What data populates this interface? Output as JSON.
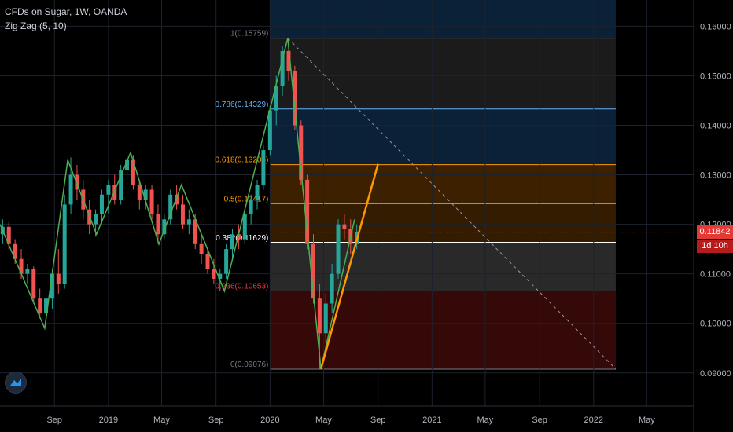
{
  "legend": {
    "symbol_line": "CFDs on Sugar, 1W, OANDA",
    "indicator_line": "Zig Zag (5, 10)"
  },
  "colors": {
    "background": "#000000",
    "axis_text": "#b2b5be",
    "up_candle": "#26a69a",
    "down_candle": "#ef5350",
    "zigzag": "#4caf50",
    "trendline": "#ff9800",
    "current_price_line": "#ef5350",
    "current_price_badge": "#e53935",
    "countdown_badge": "#b71c1c"
  },
  "current_price": {
    "label": "0.11842",
    "countdown": "1d 10h",
    "value": 0.11842
  },
  "chart_data": {
    "type": "candlestick",
    "title": "CFDs on Sugar, 1W, OANDA",
    "ylim": [
      0.0833,
      0.1653
    ],
    "y_ticks": [
      0.09,
      0.1,
      0.11,
      0.12,
      0.13,
      0.14,
      0.15,
      0.16
    ],
    "y_tick_labels": [
      "0.09000",
      "0.10000",
      "0.11000",
      "0.12000",
      "0.13000",
      "0.14000",
      "0.15000",
      "0.16000"
    ],
    "x_tick_labels": [
      "Sep",
      "2019",
      "May",
      "Sep",
      "2020",
      "May",
      "Sep",
      "2021",
      "May",
      "Sep",
      "2022",
      "May"
    ],
    "x_tick_dates": [
      "2018-09-01",
      "2019-01-01",
      "2019-05-01",
      "2019-09-01",
      "2020-01-01",
      "2020-05-01",
      "2020-09-01",
      "2021-01-01",
      "2021-05-01",
      "2021-09-01",
      "2022-01-01",
      "2022-05-01"
    ],
    "zigzag": [
      [
        "2018-05-01",
        0.12
      ],
      [
        "2018-08-10",
        0.099
      ],
      [
        "2018-10-01",
        0.133
      ],
      [
        "2018-12-05",
        0.118
      ],
      [
        "2019-02-20",
        0.1345
      ],
      [
        "2019-04-25",
        0.116
      ],
      [
        "2019-06-15",
        0.128
      ],
      [
        "2019-09-20",
        0.1065
      ],
      [
        "2020-02-10",
        0.1576
      ],
      [
        "2020-04-25",
        0.0908
      ],
      [
        "2020-07-10",
        0.121
      ]
    ],
    "fibonacci": {
      "start": "2020-01-01",
      "end": "2022-02-20",
      "levels": [
        {
          "ratio": 0,
          "price": 0.09076,
          "label": "0(0.09076)",
          "color": "#787b86",
          "fill": "rgba(120,20,20,0.45)"
        },
        {
          "ratio": 0.236,
          "price": 0.10653,
          "label": "0.236(0.10653)",
          "color": "#f23645",
          "fill": "rgba(90,90,90,0.45)"
        },
        {
          "ratio": 0.382,
          "price": 0.11629,
          "label": "0.382(0.11629)",
          "color": "#ffffff",
          "fill": "rgba(150,80,0,0.35)"
        },
        {
          "ratio": 0.5,
          "price": 0.12417,
          "label": "0.5(0.12417)",
          "color": "#ff9800",
          "fill": "rgba(150,80,0,0.40)"
        },
        {
          "ratio": 0.618,
          "price": 0.13206,
          "label": "0.618(0.13206)",
          "color": "#ff9800",
          "fill": "rgba(20,60,100,0.55)"
        },
        {
          "ratio": 0.786,
          "price": 0.14329,
          "label": "0.786(0.14329)",
          "color": "#64b5f6",
          "fill": "rgba(60,60,60,0.45)"
        },
        {
          "ratio": 1,
          "price": 0.15759,
          "label": "1(0.15759)",
          "color": "#787b86",
          "fill": "rgba(20,60,100,0.55)"
        }
      ]
    },
    "diagonal": {
      "from": [
        "2020-02-10",
        0.1576
      ],
      "to": [
        "2022-02-20",
        0.0908
      ]
    },
    "trendline": {
      "from": [
        "2020-04-25",
        0.0908
      ],
      "to": [
        "2020-09-01",
        0.1322
      ]
    },
    "candles": [
      [
        "2018-05-07",
        0.118,
        0.121,
        0.116,
        0.1195
      ],
      [
        "2018-05-21",
        0.1195,
        0.1205,
        0.115,
        0.116
      ],
      [
        "2018-06-04",
        0.116,
        0.117,
        0.112,
        0.113
      ],
      [
        "2018-06-18",
        0.113,
        0.115,
        0.109,
        0.11
      ],
      [
        "2018-07-02",
        0.11,
        0.112,
        0.108,
        0.111
      ],
      [
        "2018-07-16",
        0.111,
        0.1115,
        0.104,
        0.105
      ],
      [
        "2018-07-30",
        0.105,
        0.107,
        0.101,
        0.102
      ],
      [
        "2018-08-13",
        0.102,
        0.106,
        0.0985,
        0.105
      ],
      [
        "2018-08-27",
        0.105,
        0.111,
        0.103,
        0.11
      ],
      [
        "2018-09-10",
        0.11,
        0.115,
        0.106,
        0.108
      ],
      [
        "2018-09-24",
        0.108,
        0.126,
        0.107,
        0.124
      ],
      [
        "2018-10-08",
        0.124,
        0.1335,
        0.122,
        0.13
      ],
      [
        "2018-10-22",
        0.13,
        0.132,
        0.125,
        0.127
      ],
      [
        "2018-11-05",
        0.127,
        0.129,
        0.121,
        0.123
      ],
      [
        "2018-11-19",
        0.123,
        0.125,
        0.118,
        0.12
      ],
      [
        "2018-12-03",
        0.12,
        0.123,
        0.1175,
        0.122
      ],
      [
        "2018-12-17",
        0.122,
        0.127,
        0.12,
        0.126
      ],
      [
        "2019-01-01",
        0.126,
        0.129,
        0.122,
        0.128
      ],
      [
        "2019-01-15",
        0.128,
        0.13,
        0.124,
        0.125
      ],
      [
        "2019-01-29",
        0.125,
        0.132,
        0.124,
        0.131
      ],
      [
        "2019-02-12",
        0.131,
        0.1345,
        0.129,
        0.133
      ],
      [
        "2019-02-26",
        0.133,
        0.134,
        0.127,
        0.128
      ],
      [
        "2019-03-12",
        0.128,
        0.129,
        0.123,
        0.125
      ],
      [
        "2019-03-26",
        0.125,
        0.128,
        0.123,
        0.127
      ],
      [
        "2019-04-09",
        0.127,
        0.128,
        0.121,
        0.122
      ],
      [
        "2019-04-23",
        0.122,
        0.124,
        0.116,
        0.118
      ],
      [
        "2019-05-07",
        0.118,
        0.122,
        0.117,
        0.121
      ],
      [
        "2019-05-21",
        0.121,
        0.127,
        0.12,
        0.126
      ],
      [
        "2019-06-04",
        0.126,
        0.128,
        0.123,
        0.124
      ],
      [
        "2019-06-18",
        0.124,
        0.126,
        0.119,
        0.12
      ],
      [
        "2019-07-02",
        0.12,
        0.123,
        0.118,
        0.121
      ],
      [
        "2019-07-16",
        0.121,
        0.122,
        0.115,
        0.116
      ],
      [
        "2019-07-30",
        0.116,
        0.118,
        0.112,
        0.114
      ],
      [
        "2019-08-13",
        0.114,
        0.115,
        0.11,
        0.111
      ],
      [
        "2019-08-27",
        0.111,
        0.113,
        0.108,
        0.109
      ],
      [
        "2019-09-10",
        0.109,
        0.111,
        0.1065,
        0.11
      ],
      [
        "2019-09-24",
        0.11,
        0.116,
        0.109,
        0.115
      ],
      [
        "2019-10-08",
        0.115,
        0.119,
        0.113,
        0.118
      ],
      [
        "2019-10-22",
        0.118,
        0.12,
        0.115,
        0.117
      ],
      [
        "2019-11-05",
        0.117,
        0.123,
        0.116,
        0.122
      ],
      [
        "2019-11-19",
        0.122,
        0.126,
        0.12,
        0.125
      ],
      [
        "2019-12-03",
        0.125,
        0.129,
        0.123,
        0.128
      ],
      [
        "2019-12-17",
        0.128,
        0.136,
        0.127,
        0.135
      ],
      [
        "2020-01-01",
        0.135,
        0.144,
        0.134,
        0.143
      ],
      [
        "2020-01-15",
        0.143,
        0.15,
        0.14,
        0.148
      ],
      [
        "2020-01-29",
        0.148,
        0.156,
        0.146,
        0.155
      ],
      [
        "2020-02-12",
        0.155,
        0.1576,
        0.149,
        0.151
      ],
      [
        "2020-02-26",
        0.151,
        0.152,
        0.139,
        0.14
      ],
      [
        "2020-03-11",
        0.14,
        0.141,
        0.128,
        0.129
      ],
      [
        "2020-03-25",
        0.129,
        0.13,
        0.115,
        0.116
      ],
      [
        "2020-04-08",
        0.116,
        0.118,
        0.104,
        0.105
      ],
      [
        "2020-04-22",
        0.105,
        0.108,
        0.0908,
        0.098
      ],
      [
        "2020-05-06",
        0.098,
        0.106,
        0.096,
        0.104
      ],
      [
        "2020-05-20",
        0.104,
        0.112,
        0.102,
        0.11
      ],
      [
        "2020-06-03",
        0.11,
        0.121,
        0.109,
        0.12
      ],
      [
        "2020-06-17",
        0.12,
        0.122,
        0.117,
        0.119
      ],
      [
        "2020-07-01",
        0.119,
        0.121,
        0.114,
        0.116
      ],
      [
        "2020-07-15",
        0.116,
        0.12,
        0.115,
        0.1184
      ]
    ]
  }
}
